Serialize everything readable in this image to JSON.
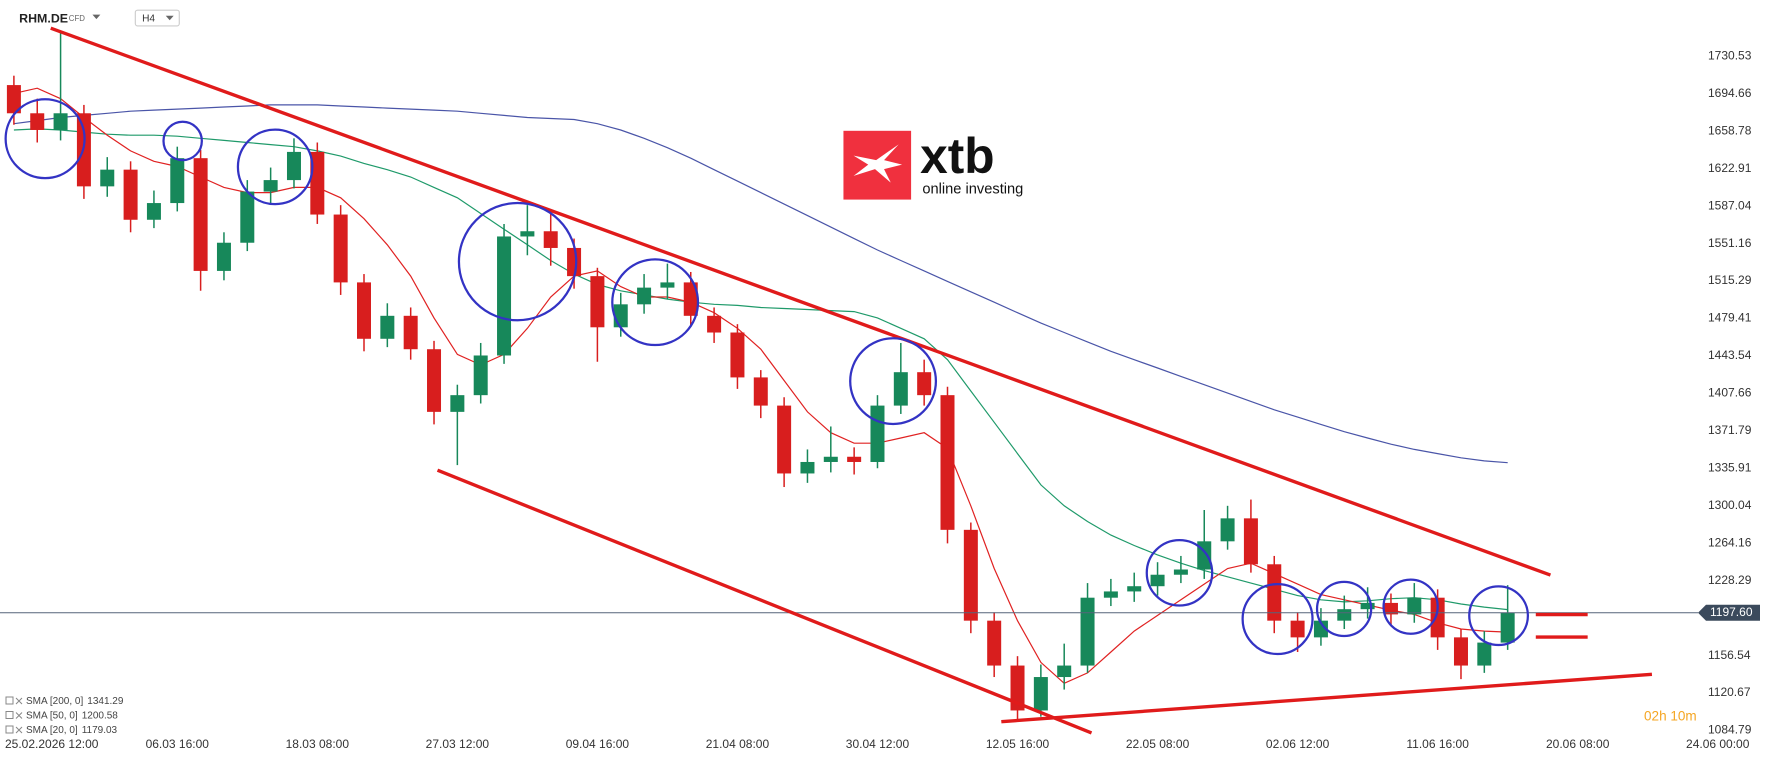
{
  "chart_data": {
    "type": "candlestick",
    "symbol": "RHM.DE",
    "instrument": "CFD",
    "timeframe": "H4",
    "logo": {
      "name": "xtb",
      "tagline": "online investing"
    },
    "countdown": "02h 10m",
    "categories": [
      null,
      "25.02.2026 12:00",
      null,
      null,
      null,
      null,
      null,
      "06.03 16:00",
      null,
      null,
      null,
      null,
      null,
      "18.03 08:00",
      null,
      null,
      null,
      null,
      null,
      "27.03 12:00",
      null,
      null,
      null,
      null,
      null,
      "09.04 16:00",
      null,
      null,
      null,
      null,
      null,
      "21.04 08:00",
      null,
      null,
      null,
      null,
      null,
      "30.04 12:00",
      null,
      null,
      null,
      null,
      null,
      "12.05 16:00",
      null,
      null,
      null,
      null,
      null,
      "22.05 08:00",
      null,
      null,
      null,
      null,
      null,
      "02.06 12:00",
      null,
      null,
      null,
      null,
      null,
      "11.06 16:00",
      null,
      null,
      null,
      null,
      null,
      "20.06 08:00",
      null,
      null,
      null,
      null,
      null,
      "24.06 00:00"
    ],
    "open": [
      1703,
      1676,
      1660,
      1676,
      1606,
      1622,
      1574,
      1590,
      1633,
      1525,
      1552,
      1601,
      1612,
      1639,
      1579,
      1514,
      1460,
      1482,
      1450,
      1390,
      1406,
      1444,
      1558,
      1563,
      1547,
      1520,
      1471,
      1493,
      1509,
      1514,
      1482,
      1466,
      1423,
      1396,
      1331,
      1342,
      1347,
      1342,
      1396,
      1428,
      1406,
      1277,
      1190,
      1147,
      1104,
      1136,
      1147,
      1212,
      1218,
      1223,
      1234,
      1239,
      1266,
      1288,
      1244,
      1190,
      1174,
      1190,
      1201,
      1207,
      1196,
      1212,
      1174,
      1147,
      1169,
      null,
      null,
      null,
      null,
      null,
      null,
      null,
      null,
      null
    ],
    "high": [
      1712,
      1690,
      1754,
      1684,
      1634,
      1630,
      1602,
      1644,
      1641,
      1562,
      1612,
      1624,
      1652,
      1648,
      1588,
      1522,
      1494,
      1490,
      1458,
      1416,
      1456,
      1570,
      1588,
      1580,
      1556,
      1528,
      1504,
      1522,
      1532,
      1524,
      1490,
      1474,
      1430,
      1404,
      1354,
      1376,
      1356,
      1406,
      1456,
      1440,
      1414,
      1284,
      1198,
      1156,
      1148,
      1168,
      1226,
      1230,
      1236,
      1246,
      1252,
      1296,
      1300,
      1306,
      1252,
      1198,
      1202,
      1214,
      1222,
      1216,
      1226,
      1220,
      1182,
      1180,
      1224,
      null,
      null,
      null,
      null,
      null,
      null,
      null,
      null,
      null
    ],
    "low": [
      1665,
      1648,
      1650,
      1594,
      1596,
      1562,
      1566,
      1582,
      1506,
      1516,
      1544,
      1590,
      1604,
      1570,
      1502,
      1448,
      1452,
      1440,
      1378,
      1339,
      1398,
      1436,
      1540,
      1530,
      1508,
      1438,
      1462,
      1484,
      1498,
      1472,
      1456,
      1412,
      1384,
      1318,
      1322,
      1332,
      1330,
      1336,
      1388,
      1396,
      1264,
      1178,
      1136,
      1093,
      1098,
      1124,
      1140,
      1204,
      1208,
      1214,
      1226,
      1230,
      1258,
      1236,
      1178,
      1160,
      1166,
      1182,
      1192,
      1186,
      1188,
      1162,
      1134,
      1140,
      1162,
      null,
      null,
      null,
      null,
      null,
      null,
      null,
      null,
      null
    ],
    "close": [
      1676,
      1660,
      1676,
      1606,
      1622,
      1574,
      1590,
      1633,
      1525,
      1552,
      1601,
      1612,
      1639,
      1579,
      1514,
      1460,
      1482,
      1450,
      1390,
      1406,
      1444,
      1558,
      1563,
      1547,
      1520,
      1471,
      1493,
      1509,
      1514,
      1482,
      1466,
      1423,
      1396,
      1331,
      1342,
      1347,
      1342,
      1396,
      1428,
      1406,
      1277,
      1190,
      1147,
      1104,
      1136,
      1147,
      1212,
      1218,
      1223,
      1234,
      1239,
      1266,
      1288,
      1244,
      1190,
      1174,
      1190,
      1201,
      1207,
      1196,
      1212,
      1174,
      1147,
      1169,
      1197.6,
      null,
      null,
      null,
      null,
      null,
      null,
      null,
      null,
      null
    ],
    "up_color": "#17885a",
    "down_color": "#d81e1e",
    "series": [
      {
        "name": "SMA [200, 0]",
        "color": "#4a55a8",
        "values": [
          1666,
          1669,
          1672,
          1674,
          1676,
          1678,
          1679,
          1680,
          1681,
          1682,
          1683,
          1684,
          1684,
          1684,
          1683,
          1682,
          1681,
          1680,
          1679,
          1678,
          1676,
          1674,
          1672,
          1671,
          1670,
          1666,
          1660,
          1652,
          1643,
          1633,
          1622,
          1611,
          1600,
          1589,
          1578,
          1567,
          1556,
          1545,
          1535,
          1525,
          1515,
          1505,
          1495,
          1485,
          1475,
          1466,
          1457,
          1448,
          1440,
          1432,
          1424,
          1416,
          1408,
          1400,
          1392,
          1385,
          1378,
          1371,
          1365,
          1359,
          1354,
          1350,
          1346,
          1343,
          1341.29,
          null,
          null,
          null,
          null,
          null,
          null,
          null,
          null,
          null
        ]
      },
      {
        "name": "SMA [50, 0]",
        "color": "#1f9a6a",
        "values": [
          1660,
          1661,
          1660,
          1658,
          1656,
          1655,
          1655,
          1654,
          1652,
          1650,
          1648,
          1646,
          1644,
          1640,
          1635,
          1628,
          1622,
          1615,
          1605,
          1595,
          1580,
          1565,
          1550,
          1535,
          1522,
          1512,
          1506,
          1502,
          1498,
          1495,
          1493,
          1492,
          1490,
          1489,
          1488,
          1487,
          1486,
          1480,
          1470,
          1460,
          1440,
          1410,
          1380,
          1350,
          1320,
          1300,
          1285,
          1272,
          1262,
          1253,
          1245,
          1238,
          1232,
          1226,
          1220,
          1214,
          1210,
          1208,
          1209,
          1211,
          1212,
          1210,
          1206,
          1203,
          1200.58,
          null,
          null,
          null,
          null,
          null,
          null,
          null,
          null,
          null
        ]
      },
      {
        "name": "SMA [20, 0]",
        "color": "#e02222",
        "values": [
          1695,
          1700,
          1690,
          1672,
          1655,
          1640,
          1630,
          1625,
          1615,
          1605,
          1600,
          1600,
          1605,
          1605,
          1595,
          1575,
          1550,
          1520,
          1480,
          1445,
          1435,
          1445,
          1470,
          1500,
          1520,
          1525,
          1510,
          1500,
          1500,
          1495,
          1485,
          1470,
          1450,
          1420,
          1390,
          1370,
          1360,
          1360,
          1365,
          1370,
          1355,
          1300,
          1240,
          1190,
          1150,
          1130,
          1140,
          1160,
          1180,
          1195,
          1210,
          1225,
          1240,
          1245,
          1235,
          1225,
          1215,
          1210,
          1205,
          1200,
          1196,
          1188,
          1182,
          1180,
          1179.03,
          null,
          null,
          null,
          null,
          null,
          null,
          null,
          null,
          null
        ]
      }
    ],
    "price_line": {
      "value": 1197.6,
      "label": "1197.60"
    },
    "ylim": [
      1082.4,
      1784.5
    ],
    "yticks": [
      1084.79,
      1120.67,
      1156.54,
      1228.29,
      1264.16,
      1300.04,
      1335.91,
      1371.79,
      1407.66,
      1443.54,
      1479.41,
      1515.29,
      1551.16,
      1587.04,
      1622.91,
      1658.78,
      1694.66,
      1730.53
    ]
  }
}
